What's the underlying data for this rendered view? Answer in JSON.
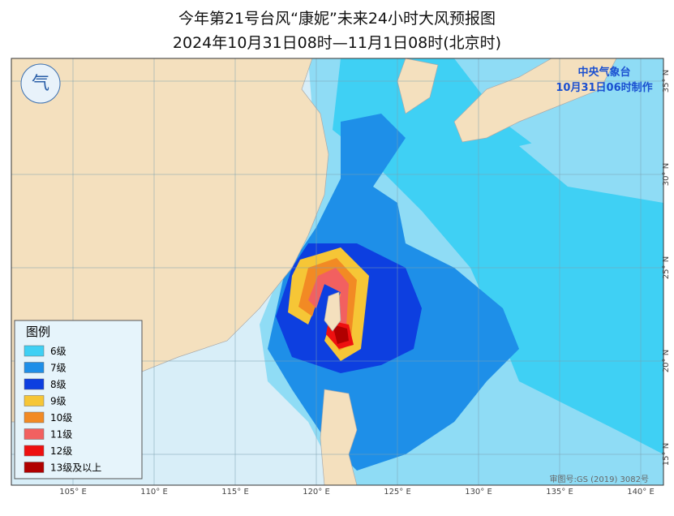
{
  "header": {
    "title": "今年第21号台风“康妮”未来24小时大风预报图",
    "subtitle": "2024年10月31日08时—11月1日08时(北京时)"
  },
  "agency": {
    "name": "中央气象台",
    "issued": "10月31日06时制作"
  },
  "legend": {
    "title": "图例",
    "items": [
      {
        "label": "6级",
        "color": "#3fd0f4"
      },
      {
        "label": "7级",
        "color": "#1e8fe8"
      },
      {
        "label": "8级",
        "color": "#0d3fe0"
      },
      {
        "label": "9级",
        "color": "#f6c636"
      },
      {
        "label": "10级",
        "color": "#f28a24"
      },
      {
        "label": "11级",
        "color": "#f26060"
      },
      {
        "label": "12级",
        "color": "#ee1010"
      },
      {
        "label": "13级及以上",
        "color": "#b00000"
      }
    ]
  },
  "lon_labels": [
    "105° E",
    "110° E",
    "115° E",
    "120° E",
    "125° E",
    "130° E",
    "135° E",
    "140° E"
  ],
  "lat_labels": [
    "15° N",
    "20° N",
    "25° N",
    "30° N",
    "35° N"
  ],
  "approval": "审图号:GS (2019) 3082号"
}
